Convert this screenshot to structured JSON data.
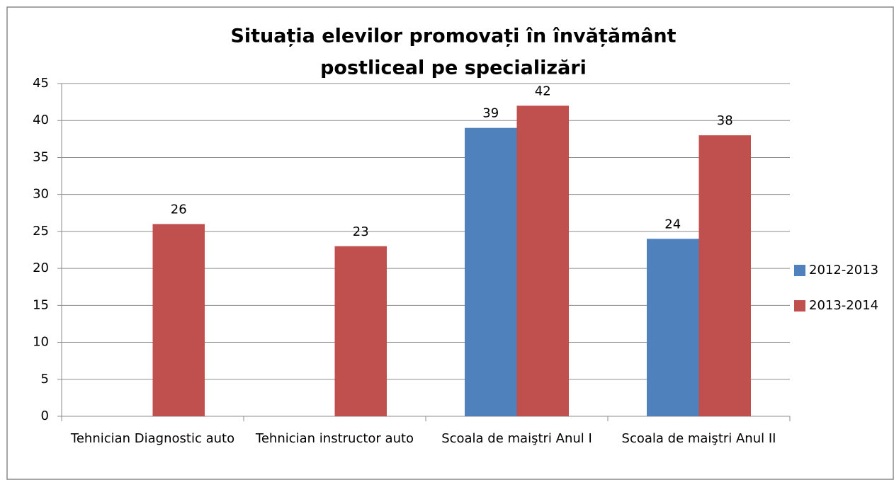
{
  "chart_data": {
    "type": "bar",
    "title": [
      "Situația elevilor promovați în învățământ",
      "postliceal pe specializări"
    ],
    "categories": [
      "Tehnician Diagnostic auto",
      "Tehnician instructor auto",
      "Scoala de maiştri Anul I",
      "Scoala de maiştri Anul II"
    ],
    "series": [
      {
        "name": "2012-2013",
        "color": "#4f81bd",
        "values": [
          null,
          null,
          39,
          24
        ]
      },
      {
        "name": "2013-2014",
        "color": "#c0504d",
        "values": [
          26,
          23,
          42,
          38
        ]
      }
    ],
    "ylim": [
      0,
      45
    ],
    "yticks": [
      0,
      5,
      10,
      15,
      20,
      25,
      30,
      35,
      40,
      45
    ],
    "grid": true,
    "legend": "right"
  }
}
